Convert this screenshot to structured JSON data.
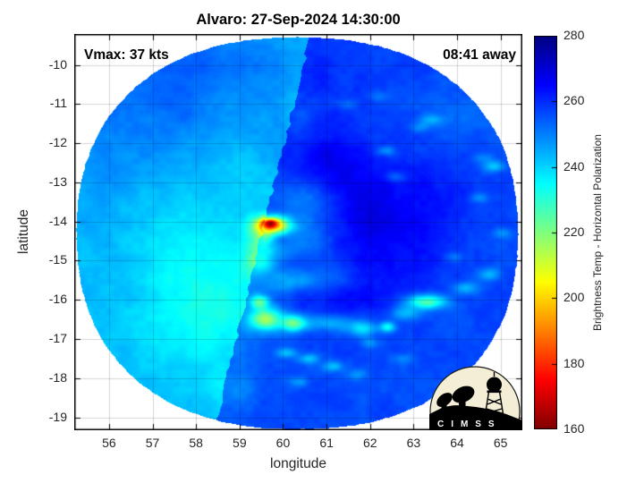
{
  "title": "Alvaro: 27-Sep-2024 14:30:00",
  "annotations": {
    "vmax": "Vmax: 37 kts",
    "timing": "08:41 away"
  },
  "axes": {
    "xlabel": "longitude",
    "ylabel": "latitude",
    "x_ticks": [
      56,
      57,
      58,
      59,
      60,
      61,
      62,
      63,
      64,
      65
    ],
    "y_ticks": [
      -10,
      -11,
      -12,
      -13,
      -14,
      -15,
      -16,
      -17,
      -18,
      -19
    ]
  },
  "colorbar": {
    "label": "Brightness Temp - Horizontal Polarization",
    "ticks": [
      280,
      260,
      240,
      220,
      200,
      180,
      160
    ],
    "min": 160,
    "max": 280,
    "colormap": "jet-reversed (160=dark red, 280=dark blue)"
  },
  "logo": {
    "text": "C I M S S"
  },
  "chart_data": {
    "type": "heatmap",
    "title": "Alvaro: 27-Sep-2024 14:30:00",
    "storm": {
      "name": "Alvaro",
      "vmax_kts": 37,
      "obs_time": "27-Sep-2024 14:30:00",
      "time_offset_label": "08:41 away"
    },
    "field_name": "Brightness Temp - Horizontal Polarization (K)",
    "axes": {
      "x_range": [
        55.2,
        65.5
      ],
      "y_range": [
        -19.33,
        -9.21
      ],
      "grid": true
    },
    "value_range": [
      160,
      280
    ],
    "swath": {
      "center_lon": 60.33,
      "center_lat": -14.3,
      "radius_lon": 5.07,
      "radius_lat": 5.0,
      "shape_exponent": 2.3,
      "seam_p1": [
        60.28,
        -10.85
      ],
      "seam_p2": [
        58.53,
        -18.81
      ],
      "base_temp_left_K": 242.5,
      "base_temp_right_K": 256.5
    },
    "hotspot": {
      "lon": 59.75,
      "lat": -14.1,
      "min_temp_K": 166
    },
    "features": [
      [
        57.6,
        -10.4,
        2.2,
        1.35,
        11
      ],
      [
        55.9,
        -13.0,
        0.9,
        1.5,
        3
      ],
      [
        58.3,
        -15.6,
        1.0,
        1.0,
        -9
      ],
      [
        58.0,
        -17.0,
        0.9,
        0.7,
        -5
      ],
      [
        58.9,
        -12.4,
        0.7,
        0.6,
        -4
      ],
      [
        57.4,
        -14.0,
        0.8,
        0.7,
        -3
      ],
      [
        58.9,
        -18.3,
        0.45,
        0.35,
        -6
      ],
      [
        59.0,
        -10.9,
        0.5,
        0.4,
        -3
      ],
      [
        61.6,
        -12.9,
        0.9,
        0.7,
        7
      ],
      [
        62.5,
        -14.6,
        0.85,
        0.95,
        7
      ],
      [
        61.3,
        -15.9,
        0.95,
        0.6,
        6
      ],
      [
        60.8,
        -12.35,
        0.6,
        0.5,
        5
      ],
      [
        63.6,
        -13.4,
        0.6,
        0.85,
        4
      ],
      [
        61.9,
        -13.9,
        0.6,
        0.6,
        4
      ],
      [
        64.05,
        -11.2,
        0.8,
        0.55,
        -4
      ],
      [
        60.55,
        -14.15,
        0.35,
        0.5,
        -8
      ],
      [
        60.45,
        -13.3,
        0.55,
        0.28,
        -7
      ],
      [
        60.2,
        -15.55,
        0.45,
        0.18,
        -8
      ],
      [
        60.95,
        -15.45,
        0.75,
        0.25,
        -6
      ],
      [
        61.1,
        -16.6,
        0.55,
        0.16,
        -14
      ],
      [
        60.35,
        -11.3,
        0.25,
        0.8,
        -5
      ],
      [
        59.78,
        -14.1,
        0.27,
        0.16,
        -55
      ],
      [
        59.7,
        -14.04,
        0.13,
        0.085,
        -38
      ],
      [
        59.6,
        -14.38,
        0.14,
        0.2,
        -16
      ],
      [
        59.38,
        -14.5,
        0.18,
        0.45,
        -10
      ],
      [
        59.75,
        -14.75,
        0.3,
        0.18,
        -10
      ],
      [
        59.5,
        -15.1,
        0.25,
        0.2,
        -14
      ],
      [
        59.6,
        -16.5,
        0.26,
        0.2,
        -37
      ],
      [
        60.25,
        -16.6,
        0.2,
        0.15,
        -30
      ],
      [
        61.85,
        -16.75,
        0.22,
        0.13,
        -17
      ],
      [
        62.4,
        -16.7,
        0.13,
        0.1,
        -24
      ],
      [
        63.3,
        -16.05,
        0.32,
        0.13,
        -33
      ],
      [
        62.8,
        -16.35,
        0.25,
        0.13,
        -16
      ],
      [
        59.45,
        -16.05,
        0.15,
        0.12,
        -26
      ],
      [
        64.2,
        -15.7,
        0.2,
        0.12,
        -14
      ],
      [
        64.75,
        -15.35,
        0.18,
        0.12,
        -12
      ]
    ],
    "speckles": [
      [
        63.4,
        -11.4,
        -11
      ],
      [
        62.35,
        -12.2,
        -12
      ],
      [
        62.6,
        -12.85,
        -9
      ],
      [
        64.85,
        -12.6,
        -16
      ],
      [
        64.6,
        -12.4,
        -8
      ],
      [
        63.15,
        -11.6,
        -8
      ],
      [
        64.5,
        -13.4,
        -9
      ],
      [
        65.05,
        -14.3,
        -10
      ],
      [
        60.1,
        -17.35,
        -13
      ],
      [
        60.6,
        -17.5,
        -14
      ],
      [
        61.15,
        -17.7,
        -13
      ],
      [
        62.0,
        -17.1,
        -10
      ],
      [
        60.35,
        -18.1,
        -10
      ],
      [
        61.7,
        -17.9,
        -8
      ],
      [
        62.75,
        -17.5,
        -8
      ],
      [
        61.45,
        -11.0,
        -7
      ],
      [
        62.2,
        -10.8,
        -7
      ],
      [
        63.9,
        -14.9,
        -8
      ]
    ],
    "description": "Circular microwave brightness-temperature swath of tropical storm Alvaro; left swath segment warmer-looking cyan (~242K), right segment deep blue (~256K), deep-convection hotspot (red/orange, ~166K) near 59.8E -14.1S, yellow-green convective arc along -16 to -17S, scattered cyan cells elsewhere."
  }
}
